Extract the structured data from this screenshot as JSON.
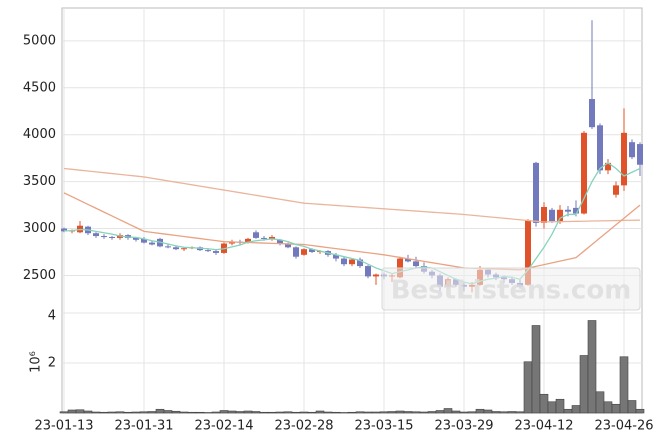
{
  "chart_data": {
    "type": "candlestick",
    "categories": [
      "23-01-13",
      null,
      null,
      null,
      null,
      null,
      null,
      null,
      null,
      null,
      "23-01-31",
      null,
      null,
      null,
      null,
      null,
      null,
      null,
      null,
      null,
      "23-02-14",
      null,
      null,
      null,
      null,
      null,
      null,
      null,
      null,
      null,
      "23-02-28",
      null,
      null,
      null,
      null,
      null,
      null,
      null,
      null,
      null,
      "23-03-15",
      null,
      null,
      null,
      null,
      null,
      null,
      null,
      null,
      null,
      "23-03-29",
      null,
      null,
      null,
      null,
      null,
      null,
      null,
      null,
      null,
      "23-04-12",
      null,
      null,
      null,
      null,
      null,
      null,
      null,
      null,
      null,
      "23-04-26",
      null,
      null
    ],
    "open": [
      3000,
      2970,
      2960,
      3020,
      2950,
      2920,
      2910,
      2900,
      2930,
      2900,
      2890,
      2850,
      2890,
      2810,
      2800,
      2780,
      2790,
      2800,
      2770,
      2760,
      2740,
      2840,
      2860,
      2850,
      2960,
      2900,
      2890,
      2880,
      2840,
      2800,
      2720,
      2780,
      2750,
      2760,
      2720,
      2680,
      2620,
      2670,
      2600,
      2490,
      2510,
      2490,
      2480,
      2680,
      2650,
      2600,
      2540,
      2500,
      2380,
      2460,
      2400,
      2380,
      2400,
      2560,
      2510,
      2480,
      2460,
      2420,
      2400,
      3700,
      3060,
      3200,
      3080,
      3200,
      3220,
      3160,
      4380,
      4100,
      3620,
      3360,
      3460,
      3920,
      3900
    ],
    "high": [
      3010,
      2990,
      3080,
      3030,
      2960,
      2940,
      2920,
      2950,
      2940,
      2910,
      2910,
      2870,
      2900,
      2830,
      2820,
      2800,
      2810,
      2810,
      2790,
      2780,
      2850,
      2880,
      2880,
      2900,
      2980,
      2920,
      2930,
      2890,
      2850,
      2810,
      2790,
      2790,
      2770,
      2770,
      2740,
      2700,
      2680,
      2690,
      2610,
      2520,
      2530,
      2520,
      2700,
      2720,
      2700,
      2640,
      2560,
      2520,
      2480,
      2470,
      2420,
      2430,
      2600,
      2580,
      2530,
      2500,
      2490,
      2460,
      3100,
      3710,
      3280,
      3220,
      3250,
      3240,
      3300,
      4040,
      5220,
      4120,
      3740,
      3500,
      4280,
      3950,
      3920
    ],
    "low": [
      2960,
      2950,
      2950,
      2930,
      2900,
      2890,
      2880,
      2880,
      2880,
      2860,
      2840,
      2820,
      2800,
      2790,
      2770,
      2760,
      2780,
      2760,
      2750,
      2720,
      2730,
      2820,
      2830,
      2840,
      2890,
      2870,
      2870,
      2820,
      2790,
      2680,
      2710,
      2740,
      2730,
      2700,
      2650,
      2600,
      2600,
      2580,
      2470,
      2400,
      2460,
      2430,
      2470,
      2640,
      2580,
      2520,
      2470,
      2330,
      2360,
      2380,
      2330,
      2320,
      2390,
      2480,
      2450,
      2420,
      2400,
      2360,
      2390,
      3020,
      3000,
      3060,
      3050,
      3130,
      3130,
      3150,
      4060,
      3580,
      3580,
      3330,
      3400,
      3740,
      3560
    ],
    "close": [
      2970,
      2980,
      3030,
      2950,
      2920,
      2910,
      2900,
      2930,
      2900,
      2880,
      2850,
      2830,
      2810,
      2800,
      2780,
      2790,
      2800,
      2770,
      2760,
      2740,
      2840,
      2860,
      2850,
      2890,
      2900,
      2890,
      2910,
      2840,
      2800,
      2700,
      2780,
      2750,
      2760,
      2720,
      2680,
      2620,
      2670,
      2600,
      2490,
      2510,
      2490,
      2500,
      2680,
      2650,
      2600,
      2540,
      2500,
      2380,
      2460,
      2400,
      2380,
      2400,
      2560,
      2510,
      2480,
      2460,
      2420,
      2380,
      3090,
      3060,
      3230,
      3080,
      3200,
      3180,
      3160,
      4020,
      4080,
      3620,
      3700,
      3460,
      4020,
      3760,
      3680
    ],
    "up_color": "#e0532a",
    "down_color": "#7379bd",
    "lines": [
      {
        "color": "#eab59c",
        "values": [
          3640,
          3631,
          3622,
          3613,
          3604,
          3595,
          3586,
          3577,
          3568,
          3559,
          3550,
          3536,
          3522,
          3508,
          3494,
          3480,
          3466,
          3452,
          3438,
          3424,
          3410,
          3396,
          3382,
          3368,
          3354,
          3340,
          3326,
          3312,
          3298,
          3284,
          3270,
          3264,
          3258,
          3252,
          3246,
          3240,
          3234,
          3228,
          3222,
          3216,
          3210,
          3204,
          3198,
          3192,
          3186,
          3180,
          3174,
          3168,
          3162,
          3156,
          3150,
          3142,
          3134,
          3126,
          3118,
          3110,
          3102,
          3094,
          3086,
          3078,
          3070,
          3072,
          3073,
          3075,
          3077,
          3078,
          3080,
          3082,
          3083,
          3085,
          3087,
          3088,
          3090
        ]
      },
      {
        "color": "#e9a383",
        "values": [
          3380,
          3339,
          3298,
          3257,
          3216,
          3175,
          3134,
          3093,
          3052,
          3011,
          2970,
          2959,
          2948,
          2937,
          2926,
          2915,
          2904,
          2893,
          2882,
          2871,
          2860,
          2857,
          2854,
          2851,
          2848,
          2845,
          2842,
          2839,
          2836,
          2833,
          2830,
          2819,
          2808,
          2797,
          2786,
          2775,
          2764,
          2753,
          2742,
          2731,
          2720,
          2706,
          2692,
          2678,
          2664,
          2650,
          2636,
          2622,
          2608,
          2594,
          2580,
          2577,
          2574,
          2571,
          2569,
          2566,
          2563,
          2560,
          2579,
          2597,
          2616,
          2634,
          2653,
          2671,
          2690,
          2760,
          2830,
          2900,
          2970,
          3040,
          3110,
          3180,
          3250
        ]
      },
      {
        "color": "#86d3bd",
        "values": [
          2975,
          2978,
          2990,
          2985,
          2970,
          2955,
          2940,
          2920,
          2910,
          2905,
          2890,
          2870,
          2855,
          2835,
          2815,
          2800,
          2795,
          2790,
          2785,
          2775,
          2785,
          2805,
          2825,
          2855,
          2870,
          2880,
          2890,
          2880,
          2860,
          2830,
          2810,
          2780,
          2760,
          2740,
          2720,
          2700,
          2680,
          2660,
          2620,
          2580,
          2550,
          2520,
          2540,
          2560,
          2580,
          2590,
          2580,
          2540,
          2500,
          2460,
          2430,
          2410,
          2440,
          2460,
          2470,
          2490,
          2480,
          2460,
          2560,
          2680,
          2800,
          2940,
          3110,
          3150,
          3150,
          3320,
          3500,
          3640,
          3700,
          3640,
          3560,
          3600,
          3640
        ]
      }
    ],
    "ylim": [
      2100,
      5350
    ],
    "yticks": [
      2500,
      3000,
      3500,
      4000,
      4500,
      5000
    ],
    "grid": true,
    "volume": {
      "values": [
        0.05,
        0.12,
        0.13,
        0.08,
        0.04,
        0.03,
        0.04,
        0.05,
        0.03,
        0.04,
        0.05,
        0.06,
        0.15,
        0.1,
        0.07,
        0.04,
        0.03,
        0.03,
        0.02,
        0.04,
        0.1,
        0.08,
        0.06,
        0.08,
        0.06,
        0.03,
        0.03,
        0.04,
        0.05,
        0.03,
        0.04,
        0.03,
        0.08,
        0.04,
        0.03,
        0.02,
        0.03,
        0.05,
        0.04,
        0.04,
        0.05,
        0.06,
        0.08,
        0.06,
        0.05,
        0.04,
        0.06,
        0.1,
        0.18,
        0.08,
        0.04,
        0.05,
        0.15,
        0.12,
        0.06,
        0.05,
        0.06,
        0.05,
        2.05,
        3.5,
        0.75,
        0.45,
        0.55,
        0.15,
        0.3,
        2.3,
        3.7,
        0.85,
        0.45,
        0.35,
        2.25,
        0.5,
        0.15
      ],
      "color": "#767676",
      "ylim": [
        0,
        4
      ],
      "yticks": [
        2,
        4
      ],
      "scale_label": "10⁶"
    },
    "watermark": "BestListens.com"
  }
}
